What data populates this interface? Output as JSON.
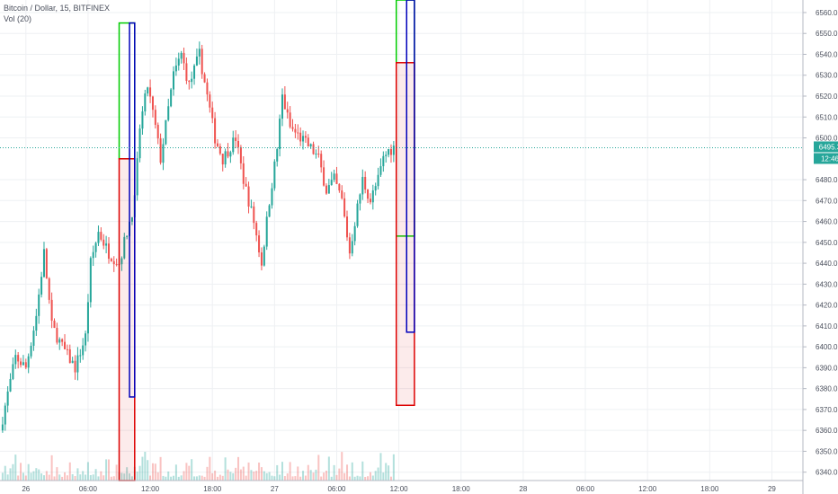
{
  "header": {
    "symbol_line": "Bitcoin / Dollar, 15, BITFINEX",
    "indicator": "Vol (20)"
  },
  "price_axis": {
    "ticks": [
      "6560.0",
      "6550.0",
      "6540.0",
      "6530.0",
      "6520.0",
      "6510.0",
      "6500.0",
      "6480.0",
      "6470.0",
      "6460.0",
      "6450.0",
      "6440.0",
      "6430.0",
      "6420.0",
      "6410.0",
      "6400.0",
      "6390.0",
      "6380.0",
      "6370.0",
      "6360.0",
      "6350.0",
      "6340.0"
    ],
    "last_price": "6495.3",
    "countdown": "12:46"
  },
  "time_axis": {
    "ticks": [
      "26",
      "06:00",
      "12:00",
      "18:00",
      "27",
      "06:00",
      "12:00",
      "18:00",
      "28",
      "06:00",
      "12:00",
      "18:00",
      "29"
    ]
  },
  "colors": {
    "up": "#26a69a",
    "down": "#ef5350",
    "last_price": "#26a69a",
    "box_green": "#00cc00",
    "box_red": "#dd0000",
    "box_blue": "#0000bb"
  },
  "chart_data": {
    "type": "candlestick",
    "title": "Bitcoin / Dollar, 15, BITFINEX",
    "x_range": [
      "25 21:30",
      "29 03:00"
    ],
    "ylim": [
      6336,
      6566
    ],
    "last_price": 6495.3,
    "grid": true,
    "close_path": [
      [
        "25 21:30",
        6360
      ],
      [
        "25 23:00",
        6395
      ],
      [
        "26 00:00",
        6390
      ],
      [
        "26 01:00",
        6415
      ],
      [
        "26 01:45",
        6445
      ],
      [
        "26 02:30",
        6410
      ],
      [
        "26 03:30",
        6400
      ],
      [
        "26 04:45",
        6390
      ],
      [
        "26 05:45",
        6405
      ],
      [
        "26 06:15",
        6440
      ],
      [
        "26 07:00",
        6455
      ],
      [
        "26 08:00",
        6445
      ],
      [
        "26 09:00",
        6440
      ],
      [
        "26 09:45",
        6455
      ],
      [
        "26 10:30",
        6470
      ],
      [
        "26 11:00",
        6505
      ],
      [
        "26 11:45",
        6525
      ],
      [
        "26 12:30",
        6505
      ],
      [
        "26 13:00",
        6490
      ],
      [
        "26 14:15",
        6530
      ],
      [
        "26 15:00",
        6540
      ],
      [
        "26 15:45",
        6525
      ],
      [
        "26 16:45",
        6540
      ],
      [
        "26 17:30",
        6520
      ],
      [
        "26 18:15",
        6500
      ],
      [
        "26 19:00",
        6490
      ],
      [
        "26 20:15",
        6500
      ],
      [
        "26 21:00",
        6480
      ],
      [
        "26 22:00",
        6460
      ],
      [
        "26 22:45",
        6440
      ],
      [
        "26 23:30",
        6470
      ],
      [
        "27 00:15",
        6495
      ],
      [
        "27 00:45",
        6520
      ],
      [
        "27 01:30",
        6505
      ],
      [
        "27 02:30",
        6500
      ],
      [
        "27 03:30",
        6495
      ],
      [
        "27 04:15",
        6490
      ],
      [
        "27 05:00",
        6475
      ],
      [
        "27 05:45",
        6480
      ],
      [
        "27 06:30",
        6470
      ],
      [
        "27 07:15",
        6445
      ],
      [
        "27 07:45",
        6460
      ],
      [
        "27 08:30",
        6480
      ],
      [
        "27 09:15",
        6470
      ],
      [
        "27 10:00",
        6480
      ],
      [
        "27 10:30",
        6490
      ],
      [
        "27 11:00",
        6494
      ],
      [
        "27 11:30",
        6495.3
      ]
    ],
    "volume_note": "Vol (20)",
    "annotation_boxes": [
      {
        "color": "green",
        "from": "26 09:00",
        "to": "26 10:30",
        "top": 6555,
        "bottom": 6490
      },
      {
        "color": "red",
        "from": "26 09:00",
        "to": "26 10:30",
        "top": 6490,
        "bottom": 6336
      },
      {
        "color": "blue",
        "from": "26 10:00",
        "to": "26 10:30",
        "top": 6555,
        "bottom": 6376
      },
      {
        "color": "green",
        "from": "27 11:45",
        "to": "27 13:30",
        "top": 6566,
        "bottom": 6453
      },
      {
        "color": "red",
        "from": "27 11:45",
        "to": "27 13:30",
        "top": 6536,
        "bottom": 6372
      },
      {
        "color": "blue",
        "from": "27 12:45",
        "to": "27 13:30",
        "top": 6566,
        "bottom": 6407
      }
    ]
  }
}
